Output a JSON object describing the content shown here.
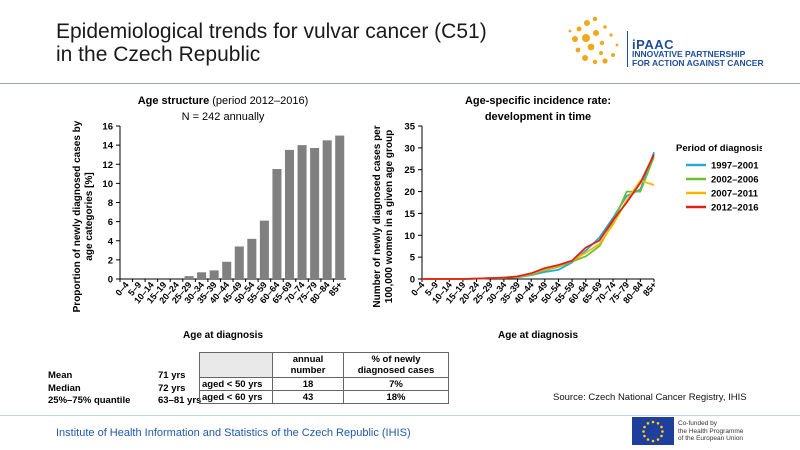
{
  "title_line1": "Epidemiological trends for vulvar cancer (C51)",
  "title_line2": "in the Czech Republic",
  "logo": {
    "name": "iPAAC",
    "line1": "INNOVATIVE PARTNERSHIP",
    "line2": "FOR ACTION AGAINST CANCER",
    "color": "#1e4e9a",
    "accent": "#f0a81c"
  },
  "chart_data": [
    {
      "type": "bar",
      "title": "Age structure",
      "title_suffix": "(period 2012–2016)",
      "subtitle": "N = 242 annually",
      "xlabel": "Age at diagnosis",
      "ylabel_line1": "Proportion of newly diagnosed cases by",
      "ylabel_line2": "age categories [%]",
      "ylim": [
        0,
        16
      ],
      "yticks": [
        "0",
        "2",
        "4",
        "6",
        "8",
        "10",
        "12",
        "14",
        "16"
      ],
      "categories": [
        "0–4",
        "5–9",
        "10–14",
        "15–19",
        "20–24",
        "25–29",
        "30–34",
        "35–39",
        "40–44",
        "45–49",
        "50–54",
        "55–59",
        "60–64",
        "65–69",
        "70–74",
        "75–79",
        "80–84",
        "85+"
      ],
      "values": [
        0,
        0,
        0,
        0,
        0,
        0.3,
        0.7,
        0.9,
        1.8,
        3.4,
        4.2,
        6.1,
        11.5,
        13.5,
        14.0,
        13.7,
        14.5,
        15.0
      ],
      "bar_color": "#808080"
    },
    {
      "type": "line",
      "title_line1": "Age-specific incidence rate:",
      "title_line2": "development in time",
      "xlabel": "Age at diagnosis",
      "ylabel_line1": "Number of newly diagnosed cases per",
      "ylabel_line2": "100,000 women in a given age group",
      "ylim": [
        0,
        35
      ],
      "yticks": [
        "0",
        "5",
        "10",
        "15",
        "20",
        "25",
        "30",
        "35"
      ],
      "legend_title": "Period of diagnosis",
      "legend_position": "right",
      "categories": [
        "0–4",
        "5–9",
        "10–14",
        "15–19",
        "20–24",
        "25–29",
        "30–34",
        "35–39",
        "40–44",
        "45–49",
        "50–54",
        "55–59",
        "60–64",
        "65–69",
        "70–74",
        "75–79",
        "80–84",
        "85+"
      ],
      "series": [
        {
          "name": "1997–2001",
          "color": "#2ba9d6",
          "values": [
            0,
            0,
            0,
            0,
            0.1,
            0.2,
            0.3,
            0.4,
            0.9,
            1.6,
            2.1,
            3.8,
            6.5,
            9.5,
            14.0,
            19.0,
            20.5,
            29.0
          ]
        },
        {
          "name": "2002–2006",
          "color": "#6bbf2f",
          "values": [
            0,
            0,
            0,
            0,
            0.1,
            0.2,
            0.2,
            0.5,
            1.0,
            2.0,
            2.8,
            4.0,
            5.2,
            7.5,
            13.0,
            20.0,
            20.0,
            28.0
          ]
        },
        {
          "name": "2007–2011",
          "color": "#f5b800",
          "values": [
            0,
            0,
            0,
            0,
            0.1,
            0.2,
            0.3,
            0.5,
            1.2,
            2.2,
            3.0,
            4.2,
            6.0,
            8.0,
            12.5,
            18.0,
            22.5,
            21.5
          ]
        },
        {
          "name": "2012–2016",
          "color": "#e0201b",
          "values": [
            0,
            0,
            0,
            0,
            0.1,
            0.2,
            0.3,
            0.6,
            1.3,
            2.5,
            3.2,
            4.2,
            7.2,
            8.8,
            13.5,
            17.5,
            22.0,
            28.5
          ]
        }
      ]
    }
  ],
  "stats": [
    {
      "label": "Mean",
      "value": "71 yrs"
    },
    {
      "label": "Median",
      "value": "72 yrs"
    },
    {
      "label": "25%–75% quantile",
      "value": "63–81 yrs"
    }
  ],
  "table": {
    "header": [
      "annual number",
      "% of newly diagnosed cases"
    ],
    "rows": [
      {
        "label": "aged < 50 yrs",
        "number": "18",
        "pct": "7%"
      },
      {
        "label": "aged < 60 yrs",
        "number": "43",
        "pct": "18%"
      }
    ]
  },
  "source": "Source: Czech National Cancer Registry, IHIS",
  "footer": "Institute of Health Information and Statistics of the Czech Republic (IHIS)",
  "eu": {
    "line1": "Co-funded by",
    "line2": "the Health Programme",
    "line3": "of the European Union"
  }
}
